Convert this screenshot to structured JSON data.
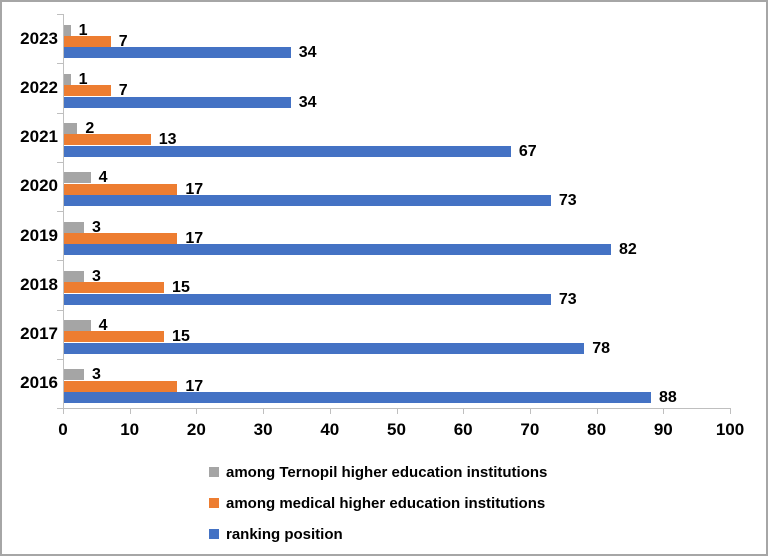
{
  "chart_data": {
    "type": "bar",
    "orientation": "horizontal",
    "title": "",
    "xlabel": "",
    "ylabel": "",
    "categories": [
      "2023",
      "2022",
      "2021",
      "2020",
      "2019",
      "2018",
      "2017",
      "2016"
    ],
    "series": [
      {
        "name": "among Ternopil higher education institutions",
        "color": "#a5a5a5",
        "values": [
          1,
          1,
          2,
          4,
          3,
          3,
          4,
          3
        ]
      },
      {
        "name": "among medical higher education institutions",
        "color": "#ed7d31",
        "values": [
          7,
          7,
          13,
          17,
          17,
          15,
          15,
          17
        ]
      },
      {
        "name": "ranking position",
        "color": "#4472c4",
        "values": [
          34,
          34,
          67,
          73,
          82,
          73,
          78,
          88
        ]
      }
    ],
    "xlim": [
      0,
      100
    ],
    "x_ticks": [
      0,
      10,
      20,
      30,
      40,
      50,
      60,
      70,
      80,
      90,
      100
    ],
    "grid": false,
    "data_labels": true,
    "legend_position": "bottom"
  },
  "colors": {
    "axis": "#bfbfbf",
    "text": "#000000",
    "frame_border": "#a6a6a6",
    "background": "#ffffff"
  }
}
